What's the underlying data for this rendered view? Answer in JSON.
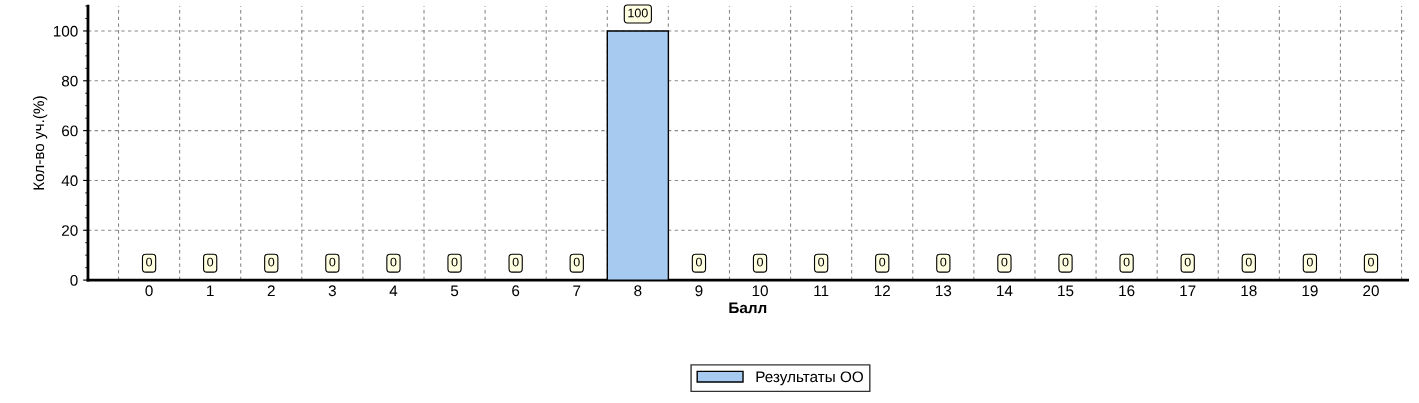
{
  "chart_data": {
    "type": "bar",
    "xlabel": "Балл",
    "ylabel": "Кол-во уч.(%)",
    "categories": [
      "0",
      "1",
      "2",
      "3",
      "4",
      "5",
      "6",
      "7",
      "8",
      "9",
      "10",
      "11",
      "12",
      "13",
      "14",
      "15",
      "16",
      "17",
      "18",
      "19",
      "20"
    ],
    "series": [
      {
        "name": "Результаты ОО",
        "color": "#a6caf0",
        "values": [
          0,
          0,
          0,
          0,
          0,
          0,
          0,
          0,
          100,
          0,
          0,
          0,
          0,
          0,
          0,
          0,
          0,
          0,
          0,
          0,
          0
        ]
      }
    ],
    "ylim": [
      0,
      110
    ],
    "yticks": [
      0,
      20,
      40,
      60,
      80,
      100
    ],
    "grid": true,
    "data_labels": true,
    "legend": "bottom"
  }
}
